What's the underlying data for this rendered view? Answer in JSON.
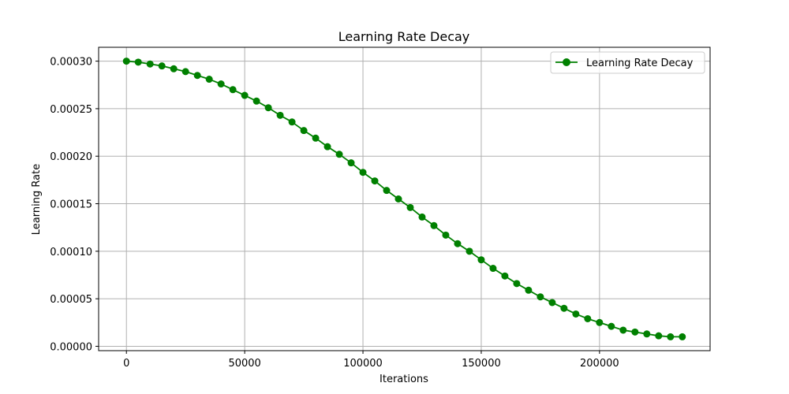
{
  "chart_data": {
    "type": "line",
    "title": "Learning Rate Decay",
    "xlabel": "Iterations",
    "ylabel": "Learning Rate",
    "xlim": [
      -11750,
      246750
    ],
    "ylim": [
      -4.6e-06,
      0.0003146
    ],
    "grid": true,
    "legend_position": "top-right",
    "x_ticks": [
      0,
      50000,
      100000,
      150000,
      200000
    ],
    "x_tick_labels": [
      "0",
      "50000",
      "100000",
      "150000",
      "200000"
    ],
    "y_ticks": [
      0,
      5e-05,
      0.0001,
      0.00015,
      0.0002,
      0.00025,
      0.0003
    ],
    "y_tick_labels": [
      "0.00000",
      "0.00005",
      "0.00010",
      "0.00015",
      "0.00020",
      "0.00025",
      "0.00030"
    ],
    "series": [
      {
        "name": "Learning Rate Decay",
        "color": "#008000",
        "marker": "circle",
        "x": [
          0,
          5000,
          10000,
          15000,
          20000,
          25000,
          30000,
          35000,
          40000,
          45000,
          50000,
          55000,
          60000,
          65000,
          70000,
          75000,
          80000,
          85000,
          90000,
          95000,
          100000,
          105000,
          110000,
          115000,
          120000,
          125000,
          130000,
          135000,
          140000,
          145000,
          150000,
          155000,
          160000,
          165000,
          170000,
          175000,
          180000,
          185000,
          190000,
          195000,
          200000,
          205000,
          210000,
          215000,
          220000,
          225000,
          230000,
          235000
        ],
        "y": [
          0.0003,
          0.000299,
          0.000297,
          0.000295,
          0.000292,
          0.000289,
          0.000285,
          0.000281,
          0.000276,
          0.00027,
          0.000264,
          0.000258,
          0.000251,
          0.000243,
          0.000236,
          0.000227,
          0.000219,
          0.00021,
          0.000202,
          0.000193,
          0.000183,
          0.000174,
          0.000164,
          0.000155,
          0.000146,
          0.000136,
          0.000127,
          0.000117,
          0.000108,
          0.0001,
          9.1e-05,
          8.2e-05,
          7.4e-05,
          6.6e-05,
          5.9e-05,
          5.2e-05,
          4.6e-05,
          4e-05,
          3.4e-05,
          2.9e-05,
          2.5e-05,
          2.1e-05,
          1.7e-05,
          1.5e-05,
          1.3e-05,
          1.1e-05,
          1e-05,
          1e-05
        ]
      }
    ]
  }
}
